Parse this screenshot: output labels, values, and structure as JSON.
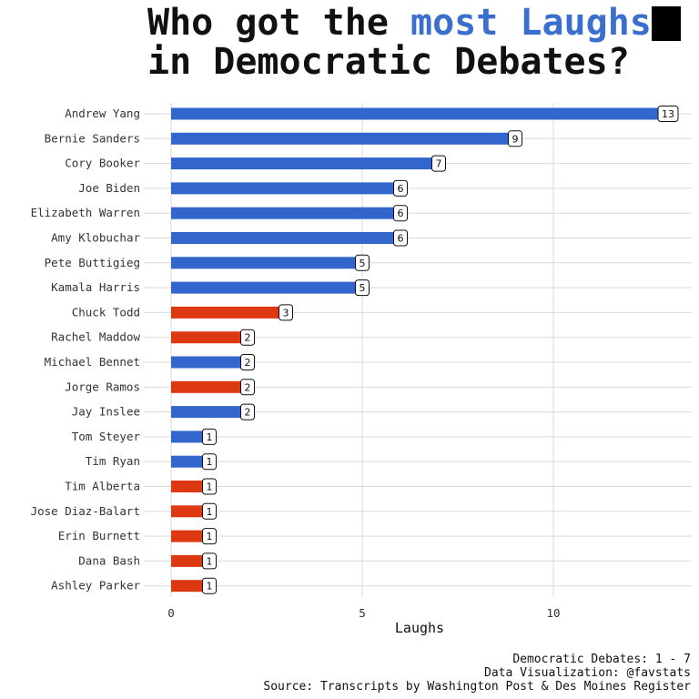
{
  "title": {
    "line1_prefix": "Who got the ",
    "line1_accent": "most Laughs",
    "line2": "in Democratic Debates?"
  },
  "colors": {
    "candidate": "#3366cc",
    "moderator": "#dc3912",
    "title_accent": "#3a6fcf",
    "grid": "#d9d9d9"
  },
  "chart_data": {
    "type": "bar",
    "orientation": "horizontal",
    "xlabel": "Laughs",
    "ylabel": "",
    "xlim": [
      0,
      13.5
    ],
    "x_ticks": [
      0,
      5,
      10
    ],
    "grid": true,
    "legend": "none",
    "categories": [
      "Andrew Yang",
      "Bernie Sanders",
      "Cory Booker",
      "Joe Biden",
      "Elizabeth Warren",
      "Amy Klobuchar",
      "Pete Buttigieg",
      "Kamala Harris",
      "Chuck Todd",
      "Rachel Maddow",
      "Michael Bennet",
      "Jorge Ramos",
      "Jay Inslee",
      "Tom Steyer",
      "Tim Ryan",
      "Tim Alberta",
      "Jose Diaz-Balart",
      "Erin Burnett",
      "Dana Bash",
      "Ashley Parker"
    ],
    "values": [
      13,
      9,
      7,
      6,
      6,
      6,
      5,
      5,
      3,
      2,
      2,
      2,
      2,
      1,
      1,
      1,
      1,
      1,
      1,
      1
    ],
    "groups": [
      "candidate",
      "candidate",
      "candidate",
      "candidate",
      "candidate",
      "candidate",
      "candidate",
      "candidate",
      "moderator",
      "moderator",
      "candidate",
      "moderator",
      "candidate",
      "candidate",
      "candidate",
      "moderator",
      "moderator",
      "moderator",
      "moderator",
      "moderator"
    ]
  },
  "caption": {
    "line1": "Democratic Debates: 1 - 7",
    "line2": "Data Visualization: @favstats",
    "line3": "Source: Transcripts by Washington Post & Des Moines Register"
  }
}
